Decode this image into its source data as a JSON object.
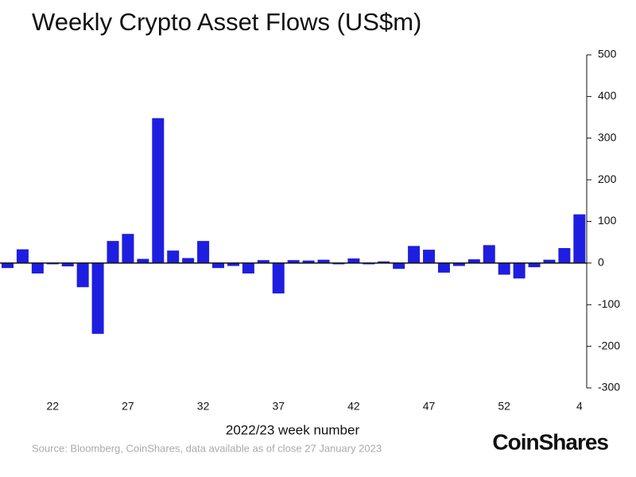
{
  "chart_data": {
    "type": "bar",
    "title": "Weekly Crypto Asset Flows (US$m)",
    "x_label": "2022/23 week number",
    "source": "Source: Bloomberg, CoinShares, data available as of close 27 January 2023",
    "logo": "CoinShares",
    "color": "#1e1ee0",
    "categories": [
      null,
      null,
      null,
      "22",
      null,
      null,
      null,
      null,
      "27",
      null,
      null,
      null,
      null,
      "32",
      null,
      null,
      null,
      null,
      "37",
      null,
      null,
      null,
      null,
      "42",
      null,
      null,
      null,
      null,
      "47",
      null,
      null,
      null,
      null,
      "52",
      null,
      null,
      null,
      null,
      "4"
    ],
    "values": [
      -12,
      33,
      -25,
      -3,
      -8,
      -58,
      -170,
      53,
      70,
      10,
      348,
      30,
      12,
      53,
      -12,
      -7,
      -25,
      7,
      -73,
      7,
      6,
      8,
      -3,
      11,
      -3,
      4,
      -14,
      41,
      32,
      -23,
      -7,
      9,
      43,
      -28,
      -37,
      -10,
      8,
      36,
      117
    ],
    "ylim": [
      -300,
      500
    ],
    "yticks": [
      -300,
      -200,
      -100,
      0,
      100,
      200,
      300,
      400,
      500
    ]
  }
}
